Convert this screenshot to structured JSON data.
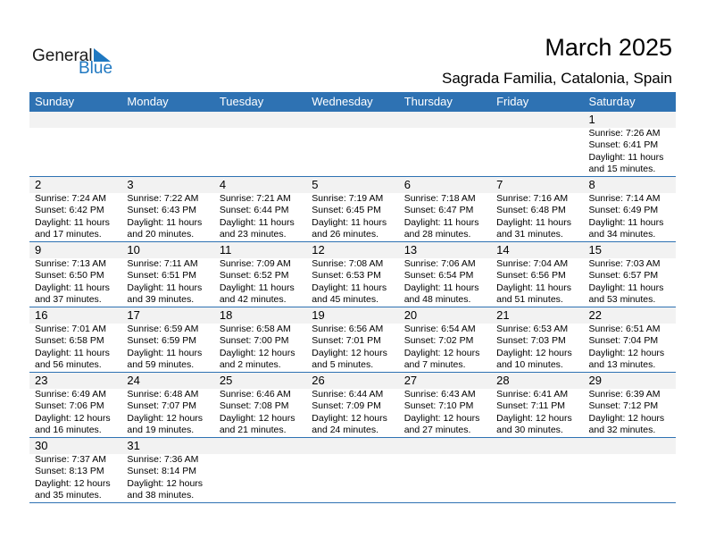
{
  "logo": {
    "general": "General",
    "blue": "Blue"
  },
  "header": {
    "title": "March 2025",
    "subtitle": "Sagrada Familia, Catalonia, Spain"
  },
  "weekdays": [
    "Sunday",
    "Monday",
    "Tuesday",
    "Wednesday",
    "Thursday",
    "Friday",
    "Saturday"
  ],
  "colors": {
    "accent": "#2e72b3",
    "band": "#f2f2f2"
  },
  "weeks": [
    [
      null,
      null,
      null,
      null,
      null,
      null,
      {
        "day": "1",
        "sunrise": "Sunrise: 7:26 AM",
        "sunset": "Sunset: 6:41 PM",
        "daylight": "Daylight: 11 hours",
        "minutes": "and 15 minutes."
      }
    ],
    [
      {
        "day": "2",
        "sunrise": "Sunrise: 7:24 AM",
        "sunset": "Sunset: 6:42 PM",
        "daylight": "Daylight: 11 hours",
        "minutes": "and 17 minutes."
      },
      {
        "day": "3",
        "sunrise": "Sunrise: 7:22 AM",
        "sunset": "Sunset: 6:43 PM",
        "daylight": "Daylight: 11 hours",
        "minutes": "and 20 minutes."
      },
      {
        "day": "4",
        "sunrise": "Sunrise: 7:21 AM",
        "sunset": "Sunset: 6:44 PM",
        "daylight": "Daylight: 11 hours",
        "minutes": "and 23 minutes."
      },
      {
        "day": "5",
        "sunrise": "Sunrise: 7:19 AM",
        "sunset": "Sunset: 6:45 PM",
        "daylight": "Daylight: 11 hours",
        "minutes": "and 26 minutes."
      },
      {
        "day": "6",
        "sunrise": "Sunrise: 7:18 AM",
        "sunset": "Sunset: 6:47 PM",
        "daylight": "Daylight: 11 hours",
        "minutes": "and 28 minutes."
      },
      {
        "day": "7",
        "sunrise": "Sunrise: 7:16 AM",
        "sunset": "Sunset: 6:48 PM",
        "daylight": "Daylight: 11 hours",
        "minutes": "and 31 minutes."
      },
      {
        "day": "8",
        "sunrise": "Sunrise: 7:14 AM",
        "sunset": "Sunset: 6:49 PM",
        "daylight": "Daylight: 11 hours",
        "minutes": "and 34 minutes."
      }
    ],
    [
      {
        "day": "9",
        "sunrise": "Sunrise: 7:13 AM",
        "sunset": "Sunset: 6:50 PM",
        "daylight": "Daylight: 11 hours",
        "minutes": "and 37 minutes."
      },
      {
        "day": "10",
        "sunrise": "Sunrise: 7:11 AM",
        "sunset": "Sunset: 6:51 PM",
        "daylight": "Daylight: 11 hours",
        "minutes": "and 39 minutes."
      },
      {
        "day": "11",
        "sunrise": "Sunrise: 7:09 AM",
        "sunset": "Sunset: 6:52 PM",
        "daylight": "Daylight: 11 hours",
        "minutes": "and 42 minutes."
      },
      {
        "day": "12",
        "sunrise": "Sunrise: 7:08 AM",
        "sunset": "Sunset: 6:53 PM",
        "daylight": "Daylight: 11 hours",
        "minutes": "and 45 minutes."
      },
      {
        "day": "13",
        "sunrise": "Sunrise: 7:06 AM",
        "sunset": "Sunset: 6:54 PM",
        "daylight": "Daylight: 11 hours",
        "minutes": "and 48 minutes."
      },
      {
        "day": "14",
        "sunrise": "Sunrise: 7:04 AM",
        "sunset": "Sunset: 6:56 PM",
        "daylight": "Daylight: 11 hours",
        "minutes": "and 51 minutes."
      },
      {
        "day": "15",
        "sunrise": "Sunrise: 7:03 AM",
        "sunset": "Sunset: 6:57 PM",
        "daylight": "Daylight: 11 hours",
        "minutes": "and 53 minutes."
      }
    ],
    [
      {
        "day": "16",
        "sunrise": "Sunrise: 7:01 AM",
        "sunset": "Sunset: 6:58 PM",
        "daylight": "Daylight: 11 hours",
        "minutes": "and 56 minutes."
      },
      {
        "day": "17",
        "sunrise": "Sunrise: 6:59 AM",
        "sunset": "Sunset: 6:59 PM",
        "daylight": "Daylight: 11 hours",
        "minutes": "and 59 minutes."
      },
      {
        "day": "18",
        "sunrise": "Sunrise: 6:58 AM",
        "sunset": "Sunset: 7:00 PM",
        "daylight": "Daylight: 12 hours",
        "minutes": "and 2 minutes."
      },
      {
        "day": "19",
        "sunrise": "Sunrise: 6:56 AM",
        "sunset": "Sunset: 7:01 PM",
        "daylight": "Daylight: 12 hours",
        "minutes": "and 5 minutes."
      },
      {
        "day": "20",
        "sunrise": "Sunrise: 6:54 AM",
        "sunset": "Sunset: 7:02 PM",
        "daylight": "Daylight: 12 hours",
        "minutes": "and 7 minutes."
      },
      {
        "day": "21",
        "sunrise": "Sunrise: 6:53 AM",
        "sunset": "Sunset: 7:03 PM",
        "daylight": "Daylight: 12 hours",
        "minutes": "and 10 minutes."
      },
      {
        "day": "22",
        "sunrise": "Sunrise: 6:51 AM",
        "sunset": "Sunset: 7:04 PM",
        "daylight": "Daylight: 12 hours",
        "minutes": "and 13 minutes."
      }
    ],
    [
      {
        "day": "23",
        "sunrise": "Sunrise: 6:49 AM",
        "sunset": "Sunset: 7:06 PM",
        "daylight": "Daylight: 12 hours",
        "minutes": "and 16 minutes."
      },
      {
        "day": "24",
        "sunrise": "Sunrise: 6:48 AM",
        "sunset": "Sunset: 7:07 PM",
        "daylight": "Daylight: 12 hours",
        "minutes": "and 19 minutes."
      },
      {
        "day": "25",
        "sunrise": "Sunrise: 6:46 AM",
        "sunset": "Sunset: 7:08 PM",
        "daylight": "Daylight: 12 hours",
        "minutes": "and 21 minutes."
      },
      {
        "day": "26",
        "sunrise": "Sunrise: 6:44 AM",
        "sunset": "Sunset: 7:09 PM",
        "daylight": "Daylight: 12 hours",
        "minutes": "and 24 minutes."
      },
      {
        "day": "27",
        "sunrise": "Sunrise: 6:43 AM",
        "sunset": "Sunset: 7:10 PM",
        "daylight": "Daylight: 12 hours",
        "minutes": "and 27 minutes."
      },
      {
        "day": "28",
        "sunrise": "Sunrise: 6:41 AM",
        "sunset": "Sunset: 7:11 PM",
        "daylight": "Daylight: 12 hours",
        "minutes": "and 30 minutes."
      },
      {
        "day": "29",
        "sunrise": "Sunrise: 6:39 AM",
        "sunset": "Sunset: 7:12 PM",
        "daylight": "Daylight: 12 hours",
        "minutes": "and 32 minutes."
      }
    ],
    [
      {
        "day": "30",
        "sunrise": "Sunrise: 7:37 AM",
        "sunset": "Sunset: 8:13 PM",
        "daylight": "Daylight: 12 hours",
        "minutes": "and 35 minutes."
      },
      {
        "day": "31",
        "sunrise": "Sunrise: 7:36 AM",
        "sunset": "Sunset: 8:14 PM",
        "daylight": "Daylight: 12 hours",
        "minutes": "and 38 minutes."
      },
      null,
      null,
      null,
      null,
      null
    ]
  ]
}
